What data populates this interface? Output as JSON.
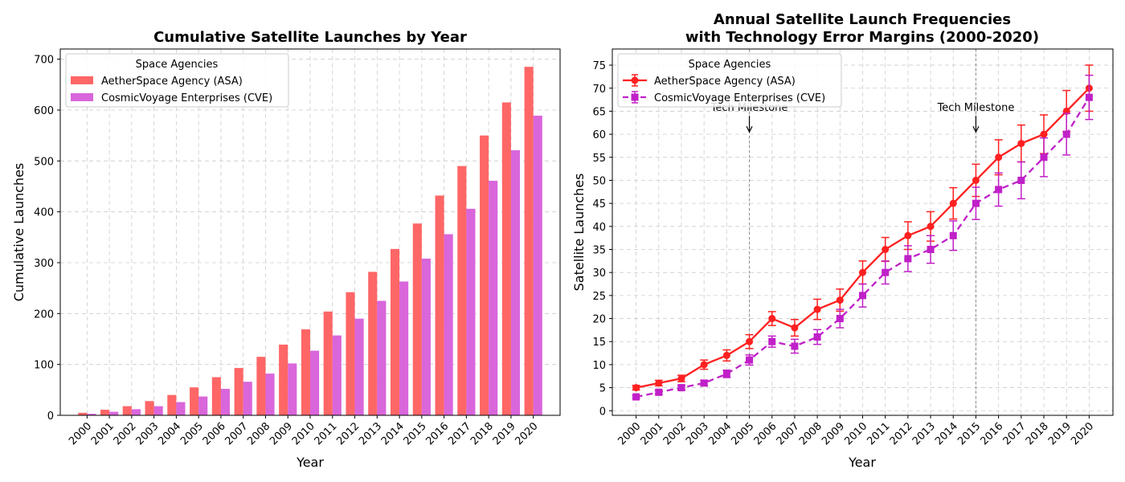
{
  "chart_data": [
    {
      "type": "bar",
      "title": "Cumulative Satellite Launches by Year",
      "xlabel": "Year",
      "ylabel": "Cumulative Launches",
      "ylim": [
        0,
        720
      ],
      "yticks": [
        0,
        100,
        200,
        300,
        400,
        500,
        600,
        700
      ],
      "grid": true,
      "legend": {
        "title": "Space Agencies",
        "placement": "top-left"
      },
      "categories": [
        "2000",
        "2001",
        "2002",
        "2003",
        "2004",
        "2005",
        "2006",
        "2007",
        "2008",
        "2009",
        "2010",
        "2011",
        "2012",
        "2013",
        "2014",
        "2015",
        "2016",
        "2017",
        "2018",
        "2019",
        "2020"
      ],
      "series": [
        {
          "name": "AetherSpace Agency (ASA)",
          "color": "#ff6666",
          "values": [
            5,
            11,
            18,
            28,
            40,
            55,
            75,
            93,
            115,
            139,
            169,
            204,
            242,
            282,
            327,
            377,
            432,
            490,
            550,
            615,
            685
          ]
        },
        {
          "name": "CosmicVoyage Enterprises (CVE)",
          "color": "#d966db",
          "values": [
            3,
            7,
            12,
            18,
            26,
            37,
            52,
            66,
            82,
            102,
            127,
            157,
            190,
            225,
            263,
            308,
            356,
            406,
            461,
            521,
            589
          ]
        }
      ]
    },
    {
      "type": "line",
      "title": "Annual Satellite Launch Frequencies",
      "subtitle": "with Technology Error Margins (2000-2020)",
      "xlabel": "Year",
      "ylabel": "Satellite Launches",
      "ylim": [
        -1,
        78.5
      ],
      "yticks": [
        0,
        5,
        10,
        15,
        20,
        25,
        30,
        35,
        40,
        45,
        50,
        55,
        60,
        65,
        70,
        75
      ],
      "grid": true,
      "legend": {
        "title": "Space Agencies",
        "placement": "top-left"
      },
      "x": [
        "2000",
        "2001",
        "2002",
        "2003",
        "2004",
        "2005",
        "2006",
        "2007",
        "2008",
        "2009",
        "2010",
        "2011",
        "2012",
        "2013",
        "2014",
        "2015",
        "2016",
        "2017",
        "2018",
        "2019",
        "2020"
      ],
      "series": [
        {
          "name": "AetherSpace Agency (ASA)",
          "color": "#ff2020",
          "marker": "circle",
          "line": "solid",
          "values": [
            5,
            6,
            7,
            10,
            12,
            15,
            20,
            18,
            22,
            24,
            30,
            35,
            38,
            40,
            45,
            50,
            55,
            58,
            60,
            65,
            70
          ],
          "errors": [
            0.5,
            0.6,
            0.7,
            1.0,
            1.2,
            1.5,
            1.5,
            1.8,
            2.2,
            2.4,
            2.5,
            2.6,
            3.0,
            3.2,
            3.4,
            3.5,
            3.8,
            4.0,
            4.2,
            4.5,
            5.0
          ]
        },
        {
          "name": "CosmicVoyage Enterprises (CVE)",
          "color": "#c020c8",
          "marker": "square",
          "line": "dashed",
          "values": [
            3,
            4,
            5,
            6,
            8,
            11,
            15,
            14,
            16,
            20,
            25,
            30,
            33,
            35,
            38,
            45,
            48,
            50,
            55,
            60,
            68
          ],
          "errors": [
            0.3,
            0.4,
            0.5,
            0.6,
            0.8,
            1.1,
            1.2,
            1.5,
            1.6,
            2.0,
            2.5,
            2.5,
            2.8,
            3.0,
            3.2,
            3.5,
            3.6,
            4.0,
            4.2,
            4.5,
            4.8
          ]
        }
      ],
      "annotations": [
        {
          "text": "Tech Milestone",
          "x": "2005",
          "y": 60.5
        },
        {
          "text": "Tech Milestone",
          "x": "2015",
          "y": 60.5
        }
      ]
    }
  ]
}
